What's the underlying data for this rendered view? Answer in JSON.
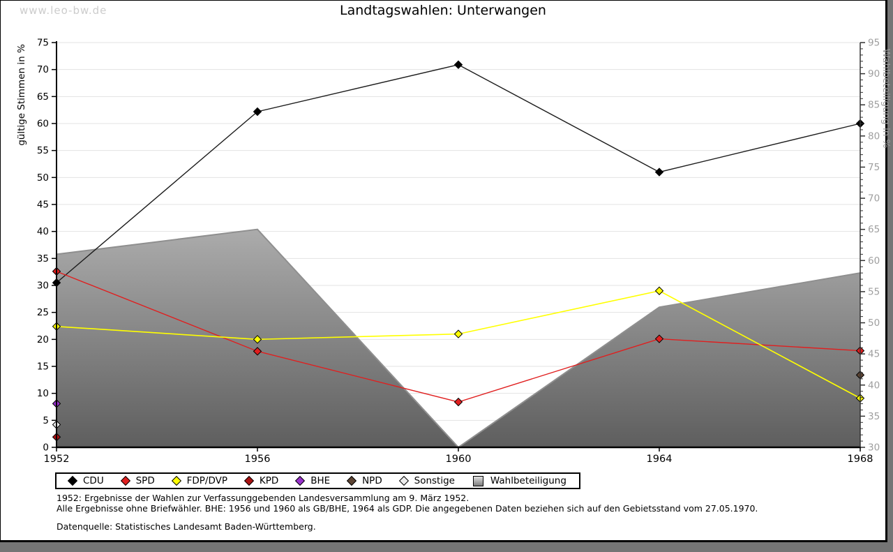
{
  "watermark": "www.leo-bw.de",
  "header": {
    "title": "Landtagswahlen: Unterwangen"
  },
  "chart_data": {
    "type": "line",
    "title": "Landtagswahlen: Unterwangen",
    "categories": [
      "1952",
      "1956",
      "1960",
      "1964",
      "1968"
    ],
    "left_axis": {
      "label": "gültige Stimmen in %",
      "min": 0,
      "max": 75,
      "tick_step": 5,
      "tick_labels": [
        "0",
        "5",
        "10",
        "15",
        "20",
        "25",
        "30",
        "35",
        "40",
        "45",
        "50",
        "55",
        "60",
        "65",
        "70",
        "75"
      ]
    },
    "right_axis": {
      "label": "Wahlbeteiligung in %",
      "min": 30,
      "max": 95,
      "tick_step": 5,
      "minor_tick_step": 1,
      "tick_labels": [
        "30",
        "35",
        "40",
        "45",
        "50",
        "55",
        "60",
        "65",
        "70",
        "75",
        "80",
        "85",
        "90",
        "95"
      ]
    },
    "grid": {
      "horizontal": true,
      "step": 5,
      "color": "#e3e3e3"
    },
    "legend_position": "bottom",
    "series": [
      {
        "name": "CDU",
        "axis": "left",
        "color": "#000000",
        "line_color": "#1c1c1c",
        "marker": "diamond",
        "values": [
          30.5,
          62.2,
          70.9,
          51.0,
          60.0
        ]
      },
      {
        "name": "SPD",
        "axis": "left",
        "color": "#e01f1f",
        "line_color": "#e01f1f",
        "marker": "diamond",
        "values": [
          32.6,
          17.8,
          8.4,
          20.1,
          17.9
        ]
      },
      {
        "name": "FDP/DVP",
        "axis": "left",
        "color": "#ffff00",
        "line_color": "#ffff00",
        "marker": "diamond",
        "values": [
          22.4,
          20.0,
          21.0,
          29.0,
          9.1
        ]
      },
      {
        "name": "KPD",
        "axis": "left",
        "color": "#aa1111",
        "marker": "diamond",
        "values": [
          1.9,
          null,
          null,
          null,
          null
        ]
      },
      {
        "name": "BHE",
        "axis": "left",
        "color": "#9932cc",
        "marker": "diamond",
        "values": [
          8.1,
          null,
          null,
          null,
          null
        ]
      },
      {
        "name": "NPD",
        "axis": "left",
        "color": "#5e4534",
        "marker": "diamond",
        "values": [
          null,
          null,
          null,
          null,
          13.4
        ]
      },
      {
        "name": "Sonstige",
        "axis": "left",
        "color": "#ececec",
        "marker": "diamond",
        "values": [
          4.2,
          null,
          null,
          null,
          null
        ]
      }
    ],
    "area_series": {
      "name": "Wahlbeteiligung",
      "axis": "right",
      "values": [
        61.0,
        65.0,
        30.0,
        52.5,
        58.0
      ],
      "fill_top": "#eeeeee",
      "fill_bottom": "#5e5e5e",
      "edge_color": "#8f8f8f"
    }
  },
  "legend": {
    "items": [
      {
        "label": "CDU",
        "marker": "diamond",
        "color": "#000000"
      },
      {
        "label": "SPD",
        "marker": "diamond",
        "color": "#e01f1f"
      },
      {
        "label": "FDP/DVP",
        "marker": "diamond",
        "color": "#ffff00"
      },
      {
        "label": "KPD",
        "marker": "diamond",
        "color": "#aa1111"
      },
      {
        "label": "BHE",
        "marker": "diamond",
        "color": "#9932cc"
      },
      {
        "label": "NPD",
        "marker": "diamond",
        "color": "#5e4534"
      },
      {
        "label": "Sonstige",
        "marker": "diamond",
        "color": "#ececec"
      },
      {
        "label": "Wahlbeteiligung",
        "marker": "square-gradient",
        "color": "#b5b5b5"
      }
    ]
  },
  "footnotes": {
    "line1": "1952: Ergebnisse der Wahlen zur Verfassunggebenden Landesversammlung am 9. März 1952.",
    "line2": "Alle Ergebnisse ohne Briefwähler. BHE: 1956 und 1960 als GB/BHE, 1964 als GDP. Die angegebenen Daten beziehen sich auf den Gebietsstand vom 27.05.1970.",
    "source": "Datenquelle: Statistisches Landesamt Baden-Württemberg."
  }
}
